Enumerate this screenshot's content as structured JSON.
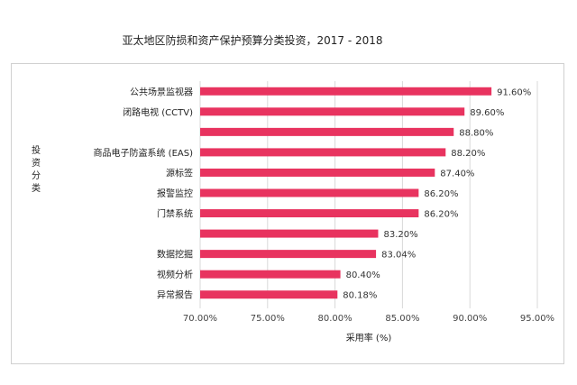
{
  "chart_data": {
    "type": "bar",
    "orientation": "horizontal",
    "title": "亚太地区防损和资产保护预算分类投资，2017 - 2018",
    "xlabel": "采用率 (%)",
    "ylabel": "投资分类",
    "xlim": [
      70,
      95
    ],
    "xticks": [
      "70.00%",
      "75.00%",
      "80.00%",
      "85.00%",
      "90.00%",
      "95.00%"
    ],
    "grid": true,
    "bar_color": "#e8335f",
    "categories": [
      "公共场景监视器",
      "闭路电视 (CCTV)",
      "",
      "商品电子防盗系统 (EAS)",
      "源标签",
      "报警监控",
      "门禁系统",
      "",
      "数据挖掘",
      "视频分析",
      "异常报告"
    ],
    "values": [
      91.6,
      89.6,
      88.8,
      88.2,
      87.4,
      86.2,
      86.2,
      83.2,
      83.04,
      80.4,
      80.18
    ],
    "data_labels": [
      "91.60%",
      "89.60%",
      "88.80%",
      "88.20%",
      "87.40%",
      "86.20%",
      "86.20%",
      "83.20%",
      "83.04%",
      "80.40%",
      "80.18%"
    ]
  }
}
